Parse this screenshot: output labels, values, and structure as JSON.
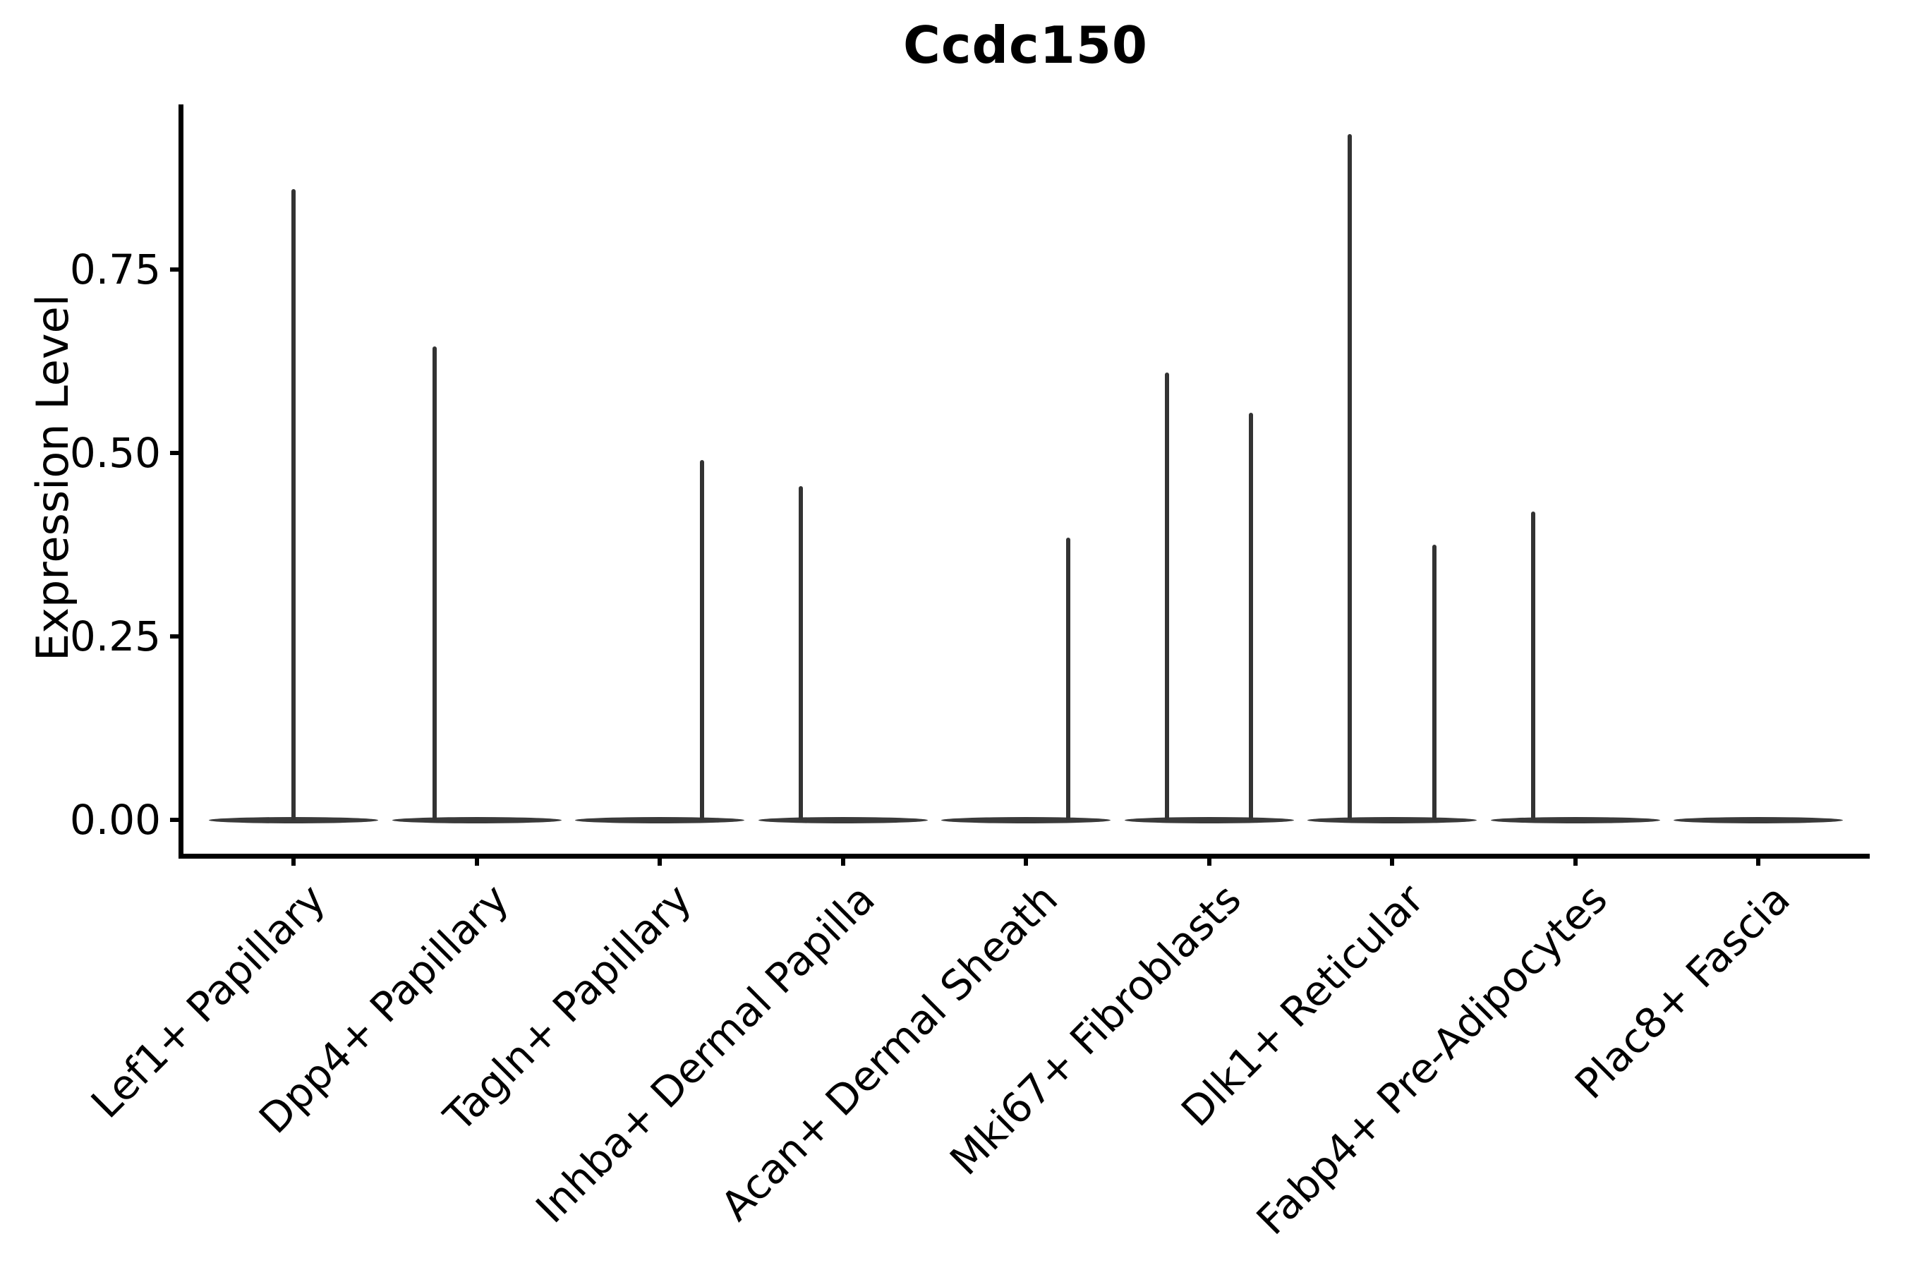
{
  "chart_data": {
    "type": "violin",
    "title": "Ccdc150",
    "xlabel": "",
    "ylabel": "Expression Level",
    "ylim": [
      0,
      0.975
    ],
    "grid": false,
    "legend_position": "none",
    "background_color": "#ffffff",
    "violin_fill": "#3a3a3a",
    "violin_edge": "#333333",
    "axis_color": "#000000",
    "yticks": [
      {
        "value": 0.0,
        "label": "0.00"
      },
      {
        "value": 0.25,
        "label": "0.25"
      },
      {
        "value": 0.5,
        "label": "0.50"
      },
      {
        "value": 0.75,
        "label": "0.75"
      }
    ],
    "categories": [
      "Lef1+ Papillary",
      "Dpp4+ Papillary",
      "Tagln+ Papillary",
      "Inhba+ Dermal Papilla",
      "Acan+ Dermal Sheath",
      "Mki67+ Fibroblasts",
      "Dlk1+ Reticular",
      "Fabp4+ Pre-Adipocytes",
      "Plac8+ Fascia"
    ],
    "violins": [
      {
        "category": "Lef1+ Papillary",
        "zero_mass_base": true,
        "spikes": [
          {
            "x_offset_frac": 0.0,
            "max_expression": 0.86
          }
        ]
      },
      {
        "category": "Dpp4+ Papillary",
        "zero_mass_base": true,
        "spikes": [
          {
            "x_offset_frac": -0.23,
            "max_expression": 0.645
          }
        ]
      },
      {
        "category": "Tagln+ Papillary",
        "zero_mass_base": true,
        "spikes": [
          {
            "x_offset_frac": 0.23,
            "max_expression": 0.49
          }
        ]
      },
      {
        "category": "Inhba+ Dermal Papilla",
        "zero_mass_base": true,
        "spikes": [
          {
            "x_offset_frac": -0.23,
            "max_expression": 0.455
          }
        ]
      },
      {
        "category": "Acan+ Dermal Sheath",
        "zero_mass_base": true,
        "spikes": [
          {
            "x_offset_frac": 0.23,
            "max_expression": 0.385
          }
        ]
      },
      {
        "category": "Mki67+ Fibroblasts",
        "zero_mass_base": true,
        "spikes": [
          {
            "x_offset_frac": -0.23,
            "max_expression": 0.61
          },
          {
            "x_offset_frac": 0.23,
            "max_expression": 0.555
          }
        ]
      },
      {
        "category": "Dlk1+ Reticular",
        "zero_mass_base": true,
        "spikes": [
          {
            "x_offset_frac": -0.23,
            "max_expression": 0.935
          },
          {
            "x_offset_frac": 0.23,
            "max_expression": 0.375
          }
        ]
      },
      {
        "category": "Fabp4+ Pre-Adipocytes",
        "zero_mass_base": true,
        "spikes": [
          {
            "x_offset_frac": -0.23,
            "max_expression": 0.42
          }
        ]
      },
      {
        "category": "Plac8+ Fascia",
        "zero_mass_base": true,
        "spikes": []
      }
    ]
  }
}
